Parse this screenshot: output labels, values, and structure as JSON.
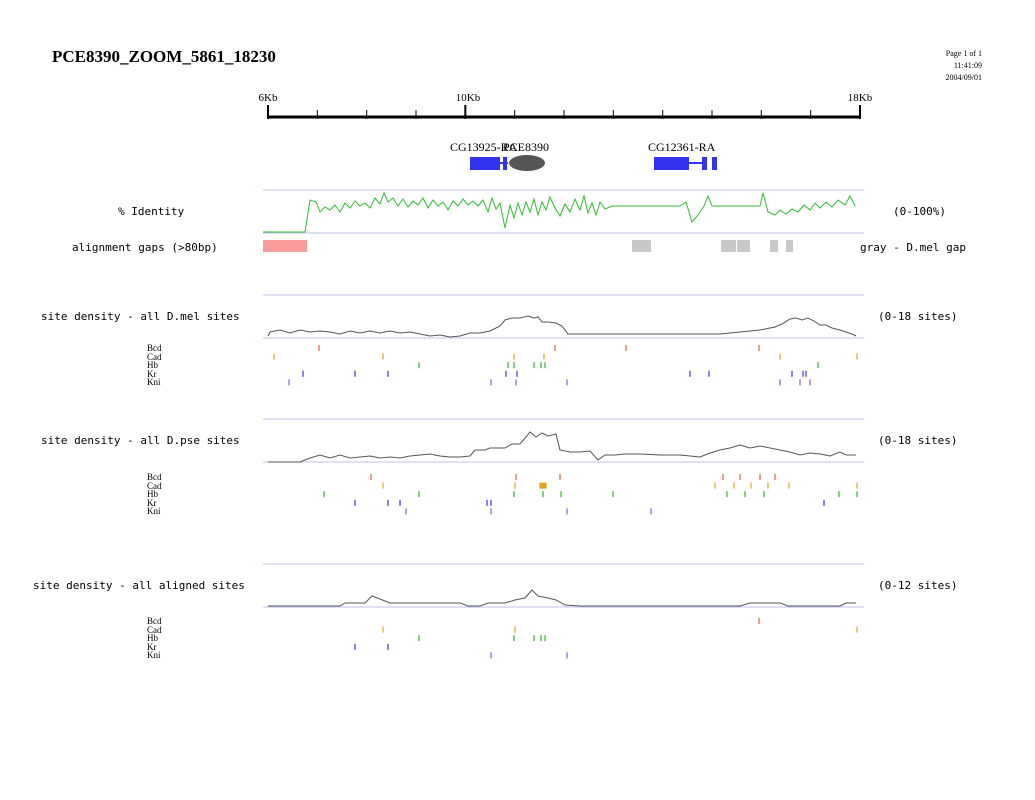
{
  "header": {
    "title": "PCE8390_ZOOM_5861_18230",
    "page": "Page 1 of 1",
    "time": "11:41:09",
    "date": "2004/09/01"
  },
  "axis": {
    "ticks": [
      {
        "label": "6Kb",
        "kb": 6
      },
      {
        "label": "10Kb",
        "kb": 10
      },
      {
        "label": "18Kb",
        "kb": 18
      }
    ],
    "start_kb": 5.861,
    "end_kb": 18.23
  },
  "genes": [
    {
      "name": "CG13925-RA",
      "start_kb": 10.1,
      "end_kb": 10.88,
      "color": "#3333ee"
    },
    {
      "name": "CG12361-RA",
      "start_kb": 13.9,
      "end_kb": 15.2,
      "color": "#3333ee"
    }
  ],
  "element": {
    "name": "PCE8390",
    "start_kb": 10.65,
    "end_kb": 11.35,
    "color": "#555555"
  },
  "identity": {
    "label": "% Identity",
    "range": "(0-100%)",
    "color": "#33bb33"
  },
  "gaps": {
    "label": "alignment gaps (>80bp)",
    "legend": "gray - D.mel gap",
    "pink_color": "#f89c9c",
    "gray_color": "#c8c8c8"
  },
  "sections": [
    {
      "label": "site density - all D.mel sites",
      "range": "(0-18 sites)",
      "tfs": [
        {
          "name": "Bcd",
          "color": "#e2623a"
        },
        {
          "name": "Cad",
          "color": "#e0a020"
        },
        {
          "name": "Hb",
          "color": "#2bb02b"
        },
        {
          "name": "Kr",
          "color": "#3333dd"
        },
        {
          "name": "Kni",
          "color": "#8855dd"
        }
      ]
    },
    {
      "label": "site density - all D.pse sites",
      "range": "(0-18 sites)",
      "tfs": [
        {
          "name": "Bcd",
          "color": "#e2623a"
        },
        {
          "name": "Cad",
          "color": "#e0a020"
        },
        {
          "name": "Hb",
          "color": "#2bb02b"
        },
        {
          "name": "Kr",
          "color": "#3333dd"
        },
        {
          "name": "Kni",
          "color": "#8855dd"
        }
      ]
    },
    {
      "label": "site density - all aligned sites",
      "range": "(0-12 sites)",
      "tfs": [
        {
          "name": "Bcd",
          "color": "#e2623a"
        },
        {
          "name": "Cad",
          "color": "#e0a020"
        },
        {
          "name": "Hb",
          "color": "#2bb02b"
        },
        {
          "name": "Kr",
          "color": "#3333dd"
        },
        {
          "name": "Kni",
          "color": "#8855dd"
        }
      ]
    }
  ]
}
